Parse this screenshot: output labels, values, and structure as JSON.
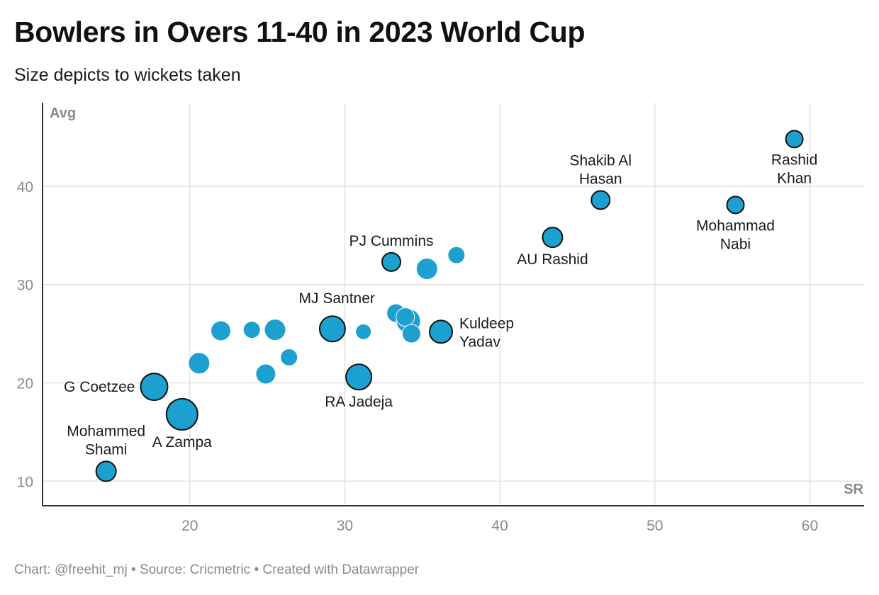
{
  "header": {
    "title": "Bowlers in Overs 11-40 in 2023 World Cup",
    "subtitle": "Size depicts to wickets taken"
  },
  "footer": {
    "text": "Chart: @freehit_mj • Source: Cricmetric • Created with Datawrapper"
  },
  "colors": {
    "point_fill": "#1ca0d0",
    "point_stroke": "#111111",
    "grid": "#e2e2e2",
    "axis": "#333333",
    "tick_text": "#8a8a8a",
    "label_text": "#1a1a1a"
  },
  "chart_data": {
    "type": "scatter",
    "xlabel": "SR",
    "ylabel": "Avg",
    "xlim": [
      10.5,
      63.5
    ],
    "ylim": [
      7.5,
      48.5
    ],
    "x_ticks": [
      20,
      30,
      40,
      50,
      60
    ],
    "y_ticks": [
      10,
      20,
      30,
      40
    ],
    "grid": true,
    "points": [
      {
        "x": 14.6,
        "y": 11.0,
        "size": 14,
        "label": [
          "Mohammed",
          "Shami"
        ],
        "anchor": "above"
      },
      {
        "x": 17.7,
        "y": 19.6,
        "size": 19,
        "label": [
          "G Coetzee"
        ],
        "anchor": "left"
      },
      {
        "x": 19.5,
        "y": 16.8,
        "size": 22,
        "label": [
          "A Zampa"
        ],
        "anchor": "below"
      },
      {
        "x": 29.2,
        "y": 25.5,
        "size": 18,
        "label": [
          "MJ Santner"
        ],
        "anchor": "above-left"
      },
      {
        "x": 30.9,
        "y": 20.6,
        "size": 18,
        "label": [
          "RA Jadeja"
        ],
        "anchor": "below"
      },
      {
        "x": 36.2,
        "y": 25.2,
        "size": 16,
        "label": [
          "Kuldeep",
          "Yadav"
        ],
        "anchor": "right"
      },
      {
        "x": 33.0,
        "y": 32.3,
        "size": 13,
        "label": [
          "PJ Cummins"
        ],
        "anchor": "above"
      },
      {
        "x": 43.4,
        "y": 34.8,
        "size": 14,
        "label": [
          "AU Rashid"
        ],
        "anchor": "below"
      },
      {
        "x": 46.5,
        "y": 38.6,
        "size": 13,
        "label": [
          "Shakib Al",
          "Hasan"
        ],
        "anchor": "above"
      },
      {
        "x": 55.2,
        "y": 38.1,
        "size": 12,
        "label": [
          "Mohammad",
          "Nabi"
        ],
        "anchor": "below"
      },
      {
        "x": 59.0,
        "y": 44.8,
        "size": 12,
        "label": [
          "Rashid",
          "Khan"
        ],
        "anchor": "below"
      },
      {
        "x": 20.6,
        "y": 22.0,
        "size": 15
      },
      {
        "x": 22.0,
        "y": 25.3,
        "size": 14
      },
      {
        "x": 24.0,
        "y": 25.4,
        "size": 12
      },
      {
        "x": 25.5,
        "y": 25.4,
        "size": 15
      },
      {
        "x": 24.9,
        "y": 20.9,
        "size": 14
      },
      {
        "x": 26.4,
        "y": 22.6,
        "size": 12
      },
      {
        "x": 31.2,
        "y": 25.2,
        "size": 11
      },
      {
        "x": 33.3,
        "y": 27.1,
        "size": 13
      },
      {
        "x": 34.1,
        "y": 26.3,
        "size": 17
      },
      {
        "x": 33.9,
        "y": 26.7,
        "size": 13
      },
      {
        "x": 34.3,
        "y": 25.0,
        "size": 13
      },
      {
        "x": 35.3,
        "y": 31.6,
        "size": 15
      },
      {
        "x": 37.2,
        "y": 33.0,
        "size": 12
      }
    ]
  }
}
